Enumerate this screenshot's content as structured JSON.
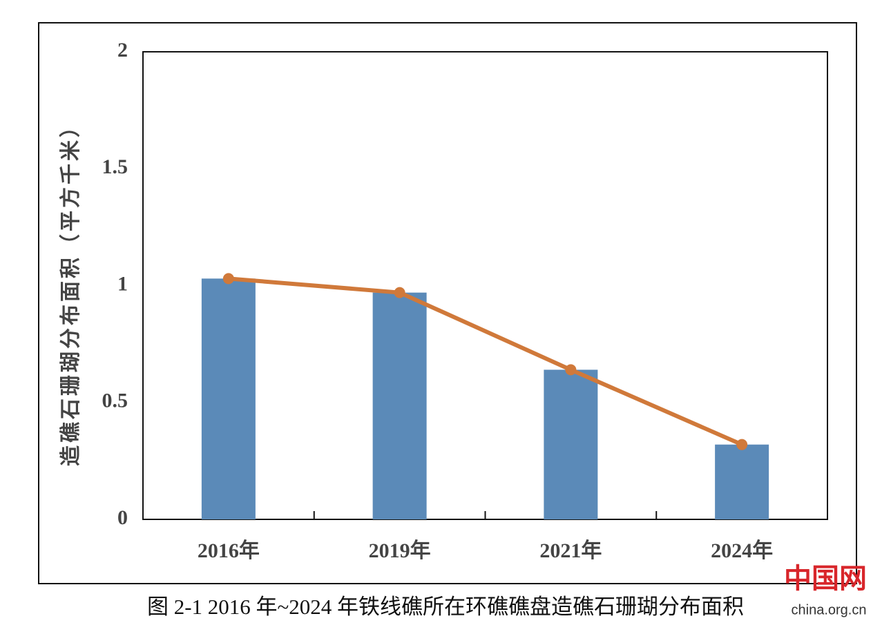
{
  "chart_data": {
    "type": "bar",
    "y_label": "造礁石珊瑚分布面积（平方千米）",
    "caption": "图 2-1 2016 年~2024 年铁线礁所在环礁礁盘造礁石珊瑚分布面积",
    "watermark": [
      "中国网",
      "china.org.cn"
    ],
    "categories": [
      "2016年",
      "2019年",
      "2021年",
      "2024年"
    ],
    "series": [
      {
        "type": "bar",
        "color": "#5b8ab8",
        "values": [
          1.03,
          0.97,
          0.64,
          0.32
        ]
      },
      {
        "type": "line",
        "color": "#d0793a",
        "values": [
          1.03,
          0.97,
          0.64,
          0.32
        ]
      }
    ],
    "ylim": [
      0,
      2
    ],
    "yticks": [
      0,
      0.5,
      1,
      1.5,
      2
    ],
    "grid": false
  }
}
